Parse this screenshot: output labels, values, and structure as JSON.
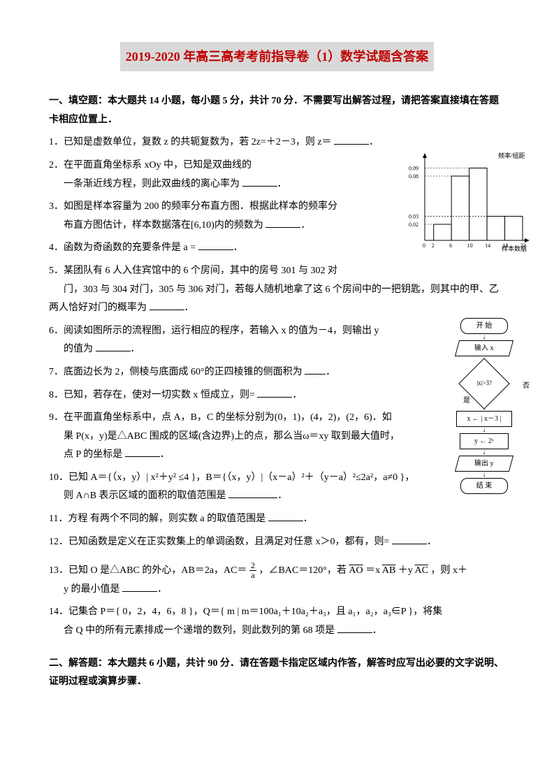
{
  "title": "2019-2020 年高三高考考前指导卷（1）数学试题含答案",
  "section1": {
    "heading": "一、填空题：本大题共 14 小题，每小题 5 分，共计 70 分．不需要写出解答过程，请把答案直接填在答题卡相应位置上．",
    "q1": "1．已知是虚数单位，复数 z 的共轭复数为，若 2z=＋2－3，则 z＝",
    "q2a": "2．在平面直角坐标系 xOy 中，已知是双曲线的",
    "q2b": "一条渐近线方程，则此双曲线的离心率为",
    "q3a": "3．如图是样本容量为 200 的频率分布直方图．根据此样本的频率分",
    "q3b": "布直方图估计，样本数据落在[6,10)内的频数为",
    "q4": "4．函数为奇函数的充要条件是 a =",
    "q5a": "5．某团队有 6 人入住宾馆中的 6 个房间，其中的房号 301 与 302 对",
    "q5b": "门，303 与 304 对门，305 与 306 对门，若每人随机地拿了这 6 个房间中的一把钥匙，则其中的甲、乙两人恰好对门的概率为",
    "q6a": "6．阅读如图所示的流程图，运行相应的程序，若输入 x 的值为－4，则输出 y",
    "q6b": "的值为",
    "q7": "7．底面边长为 2，侧棱与底面成 60°的正四棱锥的侧面积为",
    "q8": "8．已知，若存在，使对一切实数 x 恒成立，则=",
    "q9a": "9．在平面直角坐标系中，点 A，B，C 的坐标分别为(0，1)，(4，2)，(2，6)．如",
    "q9b": "果 P(x，y)是△ABC 围成的区域(含边界)上的点，那么当ω＝xy 取到最大值时，",
    "q9c": "点 P 的坐标是",
    "q10a": "10．已知 A＝{（x，y）| x²＋y² ≤4 }，B＝{（x，y）|（x－a）²＋（y－a）²≤2a²，a≠0 }，",
    "q10b": "则 A∩B 表示区域的面积的取值范围是",
    "q11": "11．方程 有两个不同的解，则实数 a 的取值范围是",
    "q12": "12．已知函数是定义在正实数集上的单调函数，且满足对任意 x＞0，都有，则=",
    "q13a_pre": "13．已知 O 是△ABC 的外心，AB＝2a，AC＝",
    "q13a_post": "，∠BAC＝120°，若",
    "q13a_vec": "＝x",
    "q13a_vec2": "＋y",
    "q13a_end": "，则 x＋",
    "q13b": "y 的最小值是",
    "q14a": "14．记集合 P＝{ 0，2，4，6，8 }，Q＝{ m | m＝100a₁＋10a₂＋a₃，且 a₁，a₂，a₃∈P }，将集",
    "q14b": "合 Q 中的所有元素排成一个递增的数列，则此数列的第 68 项是",
    "frac_n": "2",
    "frac_d": "a",
    "vec_AO": "AO",
    "vec_AB": "AB",
    "vec_AC": "AC"
  },
  "section2": {
    "heading": "二、解答题：本大题共 6 小题，共计 90 分．请在答题卡指定区域内作答，解答时应写出必要的文字说明、证明过程或演算步骤．"
  },
  "histogram": {
    "ylabel": "频率/组距",
    "xlabel": "样本数据",
    "yticks": [
      "0.02",
      "0.03",
      "0.08",
      "0.09"
    ],
    "xticks": [
      "0",
      "2",
      "6",
      "10",
      "14",
      "18",
      "22"
    ],
    "bars": [
      {
        "x": 2,
        "w": 4,
        "h": 0.02,
        "color": "#ffffff"
      },
      {
        "x": 6,
        "w": 4,
        "h": 0.08,
        "color": "#ffffff"
      },
      {
        "x": 10,
        "w": 4,
        "h": 0.09,
        "color": "#ffffff"
      },
      {
        "x": 14,
        "w": 4,
        "h": 0.03,
        "color": "#ffffff"
      },
      {
        "x": 18,
        "w": 4,
        "h": 0.03,
        "color": "#ffffff"
      }
    ],
    "axis_color": "#000000",
    "width": 180,
    "height": 150,
    "ymax": 0.1
  },
  "flowchart": {
    "start": "开 始",
    "input": "输入 x",
    "cond": "|x|>3?",
    "cond_no": "否",
    "cond_yes": "是",
    "assign1": "x ← | x－3 |",
    "assign2": "y ← 2ˣ",
    "output": "输出 y",
    "end": "结 束"
  }
}
